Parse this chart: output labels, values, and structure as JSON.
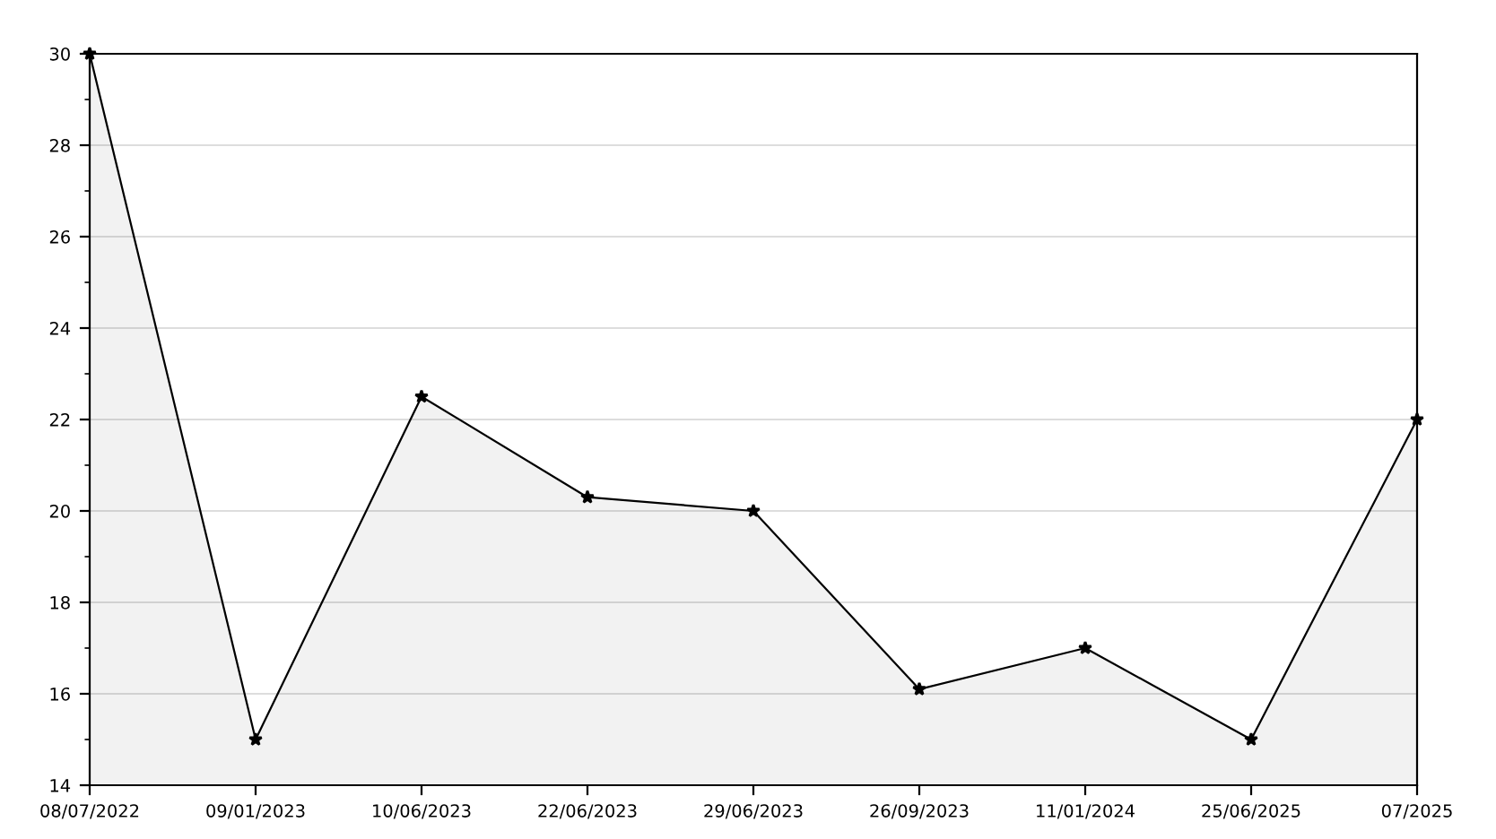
{
  "chart_data": {
    "type": "area",
    "categories": [
      "08/07/2022",
      "09/01/2023",
      "10/06/2023",
      "22/06/2023",
      "29/06/2023",
      "26/09/2023",
      "11/01/2024",
      "25/06/2025",
      "07/2025"
    ],
    "series": [
      {
        "color": "#000000",
        "values": [
          30,
          15,
          22.5,
          20.3,
          20,
          16.1,
          17,
          15,
          22
        ]
      }
    ],
    "ylim": [
      14,
      30
    ],
    "yticks": [
      14,
      16,
      18,
      20,
      22,
      24,
      26,
      28,
      30
    ],
    "grid": "y",
    "marker": "star",
    "line_style": "solid",
    "legend": false
  }
}
